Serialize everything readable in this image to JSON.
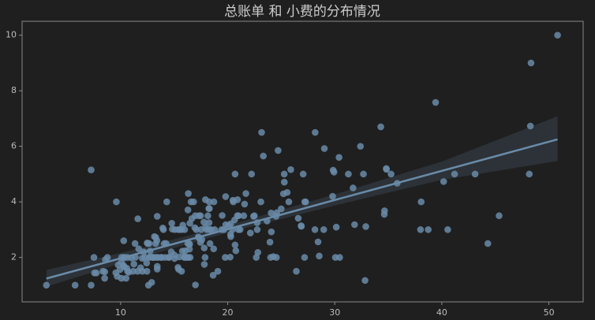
{
  "chart_data": {
    "type": "scatter",
    "title": "总账单 和 小费的分布情况",
    "series": [
      {
        "color": "#6a8ba8",
        "x": [
          16.99,
          10.34,
          21.01,
          23.68,
          24.59,
          25.29,
          8.77,
          26.88,
          15.04,
          14.78,
          10.27,
          35.26,
          15.42,
          18.43,
          14.83,
          21.58,
          10.33,
          16.29,
          16.97,
          20.65,
          17.92,
          20.29,
          15.77,
          39.42,
          19.82,
          17.81,
          13.37,
          12.69,
          21.7,
          19.65,
          9.55,
          18.35,
          15.06,
          20.69,
          17.78,
          24.06,
          16.31,
          16.93,
          18.69,
          31.27,
          16.04,
          17.46,
          13.94,
          9.68,
          30.4,
          18.29,
          22.23,
          32.4,
          28.55,
          18.04,
          12.54,
          10.29,
          34.81,
          9.94,
          25.56,
          19.49,
          38.01,
          26.41,
          11.24,
          48.27,
          20.29,
          13.81,
          11.02,
          18.29,
          17.59,
          20.08,
          16.45,
          3.07,
          20.23,
          15.01,
          12.02,
          17.07,
          26.86,
          25.28,
          14.73,
          10.51,
          17.92,
          27.2,
          22.76,
          17.29,
          19.44,
          16.66,
          10.07,
          32.68,
          15.98,
          34.83,
          13.03,
          18.28,
          24.71,
          21.16,
          28.97,
          22.49,
          5.75,
          16.32,
          22.75,
          40.17,
          27.28,
          12.03,
          21.01,
          12.46,
          11.35,
          15.38,
          44.3,
          22.42,
          20.92,
          15.36,
          20.49,
          25.21,
          18.24,
          14.31,
          14,
          7.25,
          38.07,
          23.95,
          25.71,
          17.31,
          29.93,
          10.65,
          12.43,
          24.08,
          11.69,
          13.42,
          14.26,
          15.95,
          12.48,
          29.8,
          8.52,
          14.52,
          11.38,
          22.82,
          19.08,
          20.27,
          11.17,
          12.26,
          18.26,
          8.51,
          10.33,
          14.15,
          16,
          13.16,
          17.47,
          34.3,
          41.19,
          27.05,
          16.43,
          8.35,
          18.64,
          11.87,
          9.78,
          7.51,
          14.07,
          13.13,
          17.26,
          24.55,
          19.77,
          29.85,
          48.17,
          25,
          13.39,
          16.49,
          21.5,
          12.66,
          16.21,
          13.81,
          17.51,
          24.52,
          20.76,
          31.71,
          10.59,
          10.63,
          50.81,
          15.81,
          7.25,
          31.85,
          16.82,
          32.9,
          17.89,
          14.48,
          9.6,
          34.63,
          34.65,
          23.33,
          45.35,
          23.17,
          40.55,
          20.69,
          20.9,
          30.46,
          18.15,
          23.1,
          15.69,
          19.81,
          28.44,
          15.48,
          16.58,
          7.56,
          10.34,
          43.11,
          13,
          13.51,
          18.71,
          12.74,
          13,
          16.4,
          20.53,
          16.47,
          26.59,
          38.73,
          24.27,
          12.76,
          30.06,
          25.89,
          48.33,
          13.27,
          28.17,
          12.9,
          28.15,
          11.59,
          7.74,
          30.14,
          12.16,
          13.42,
          8.58,
          15.98,
          13.42,
          16.27,
          10.09,
          20.45,
          13.28,
          22.12,
          24.01,
          15.69,
          11.61,
          10.77,
          15.53,
          10.07,
          12.6,
          32.83,
          35.83,
          29.03,
          27.18,
          22.67,
          17.82,
          18.78
        ],
        "values": [
          1.01,
          1.66,
          3.5,
          3.31,
          3.61,
          4.71,
          2,
          3.12,
          1.96,
          3.23,
          1.71,
          5,
          1.57,
          3,
          3.02,
          3.92,
          1.67,
          3.71,
          3.5,
          3.35,
          4.08,
          2.75,
          2.23,
          7.58,
          3.18,
          2.34,
          2,
          2,
          4.3,
          3,
          1.45,
          2.5,
          3,
          2.45,
          3.27,
          3.6,
          2,
          3.07,
          2.31,
          5,
          2.24,
          2.54,
          3.06,
          1.32,
          5.6,
          3,
          5,
          6,
          2.05,
          3,
          2.5,
          2.6,
          5.2,
          1.56,
          4.34,
          3.51,
          3,
          1.5,
          1.76,
          6.73,
          3.21,
          2,
          1.98,
          3.76,
          2.64,
          3.15,
          2.47,
          1,
          2.01,
          2.09,
          1.97,
          3,
          3.14,
          5,
          2.2,
          1.25,
          3.08,
          4,
          3,
          2.71,
          3,
          3.4,
          1.83,
          5,
          2.03,
          5.17,
          2,
          4,
          5.85,
          3,
          3,
          3.5,
          1,
          4.3,
          3.25,
          4.73,
          4,
          1.5,
          3,
          1.5,
          2.5,
          3,
          2.5,
          3.48,
          4.08,
          1.64,
          4.06,
          4.29,
          3.76,
          4,
          3,
          1,
          4,
          2.55,
          4,
          3.5,
          5.07,
          1.5,
          1.8,
          2.92,
          2.31,
          1.68,
          2.5,
          2,
          2.52,
          4.2,
          1.48,
          2,
          2,
          2.18,
          1.5,
          2.83,
          1.5,
          2,
          3.25,
          1.25,
          2,
          2,
          2,
          2.75,
          3.5,
          6.7,
          5,
          5,
          2.3,
          1.5,
          1.36,
          1.63,
          1.73,
          2,
          2.5,
          2,
          2.74,
          2,
          2,
          5.14,
          5,
          3.75,
          2.61,
          2,
          3.5,
          2.5,
          2,
          2,
          3,
          3.48,
          2.24,
          4.5,
          1.61,
          2,
          10,
          3.16,
          5.15,
          3.18,
          4,
          3.11,
          2,
          2,
          4,
          3.55,
          3.68,
          5.65,
          3.5,
          6.5,
          3,
          5,
          3.5,
          2,
          3.5,
          4,
          1.5,
          4.19,
          2.56,
          2.02,
          4,
          1.44,
          2,
          5,
          2,
          2,
          4,
          2.01,
          2,
          2.5,
          4,
          3.23,
          3.41,
          3,
          2.03,
          2.23,
          2,
          5.16,
          9,
          2.5,
          6.5,
          1.1,
          3,
          1.5,
          1.44,
          3.09,
          2.2,
          3.48,
          1.92,
          3,
          1.58,
          2.5,
          2,
          3,
          2.72,
          2.88,
          2,
          3,
          3.39,
          1.47,
          3,
          1.25,
          1,
          1.17,
          4.67,
          5.92,
          2,
          2,
          1.75,
          3
        ]
      }
    ],
    "fit": {
      "x": [
        3.07,
        50.81
      ],
      "y": [
        1.24,
        6.25
      ]
    },
    "ci": {
      "x": [
        3.07,
        10,
        20,
        30,
        40,
        50.81
      ],
      "lower": [
        0.95,
        1.78,
        2.89,
        3.87,
        4.79,
        5.47
      ],
      "upper": [
        1.55,
        2.16,
        3.15,
        4.27,
        5.45,
        7.08
      ]
    },
    "xlim": [
      0.8,
      53.2
    ],
    "ylim": [
      0.4,
      10.5
    ],
    "xticks": [
      10,
      20,
      30,
      40,
      50
    ],
    "yticks": [
      2,
      4,
      6,
      8,
      10
    ],
    "grid": false
  }
}
